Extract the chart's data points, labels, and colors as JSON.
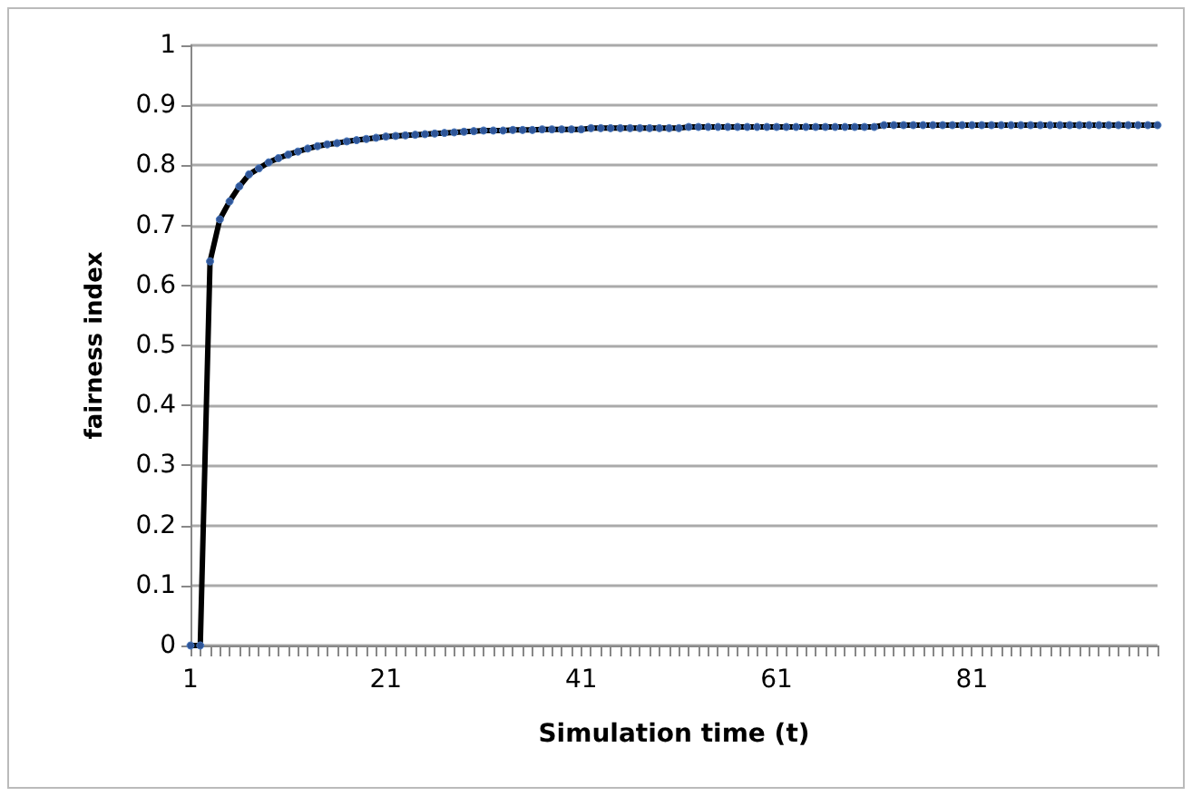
{
  "chart_data": {
    "type": "line",
    "xlabel": "Simulation time (t)",
    "ylabel": "fairness index",
    "categories": [
      "1",
      null,
      null,
      null,
      null,
      null,
      null,
      null,
      null,
      null,
      null,
      null,
      null,
      null,
      null,
      null,
      null,
      null,
      null,
      null,
      "21",
      null,
      null,
      null,
      null,
      null,
      null,
      null,
      null,
      null,
      null,
      null,
      null,
      null,
      null,
      null,
      null,
      null,
      null,
      null,
      "41",
      null,
      null,
      null,
      null,
      null,
      null,
      null,
      null,
      null,
      null,
      null,
      null,
      null,
      null,
      null,
      null,
      null,
      null,
      null,
      "61",
      null,
      null,
      null,
      null,
      null,
      null,
      null,
      null,
      null,
      null,
      null,
      null,
      null,
      null,
      null,
      null,
      null,
      null,
      null,
      "81",
      null,
      null,
      null,
      null,
      null,
      null,
      null,
      null,
      null,
      null,
      null,
      null,
      null,
      null,
      null,
      null,
      null,
      null,
      null
    ],
    "series": [
      {
        "color": "#000000",
        "values": [
          0,
          0,
          0.64,
          0.71,
          0.74,
          0.765,
          0.785,
          0.795,
          0.805,
          0.812,
          0.818,
          0.823,
          0.828,
          0.832,
          0.835,
          0.837,
          0.84,
          0.842,
          0.844,
          0.846,
          0.848,
          0.849,
          0.85,
          0.851,
          0.852,
          0.853,
          0.854,
          0.855,
          0.856,
          0.857,
          0.858,
          0.858,
          0.858,
          0.859,
          0.859,
          0.859,
          0.86,
          0.86,
          0.86,
          0.86,
          0.86,
          0.862,
          0.862,
          0.862,
          0.862,
          0.862,
          0.862,
          0.862,
          0.862,
          0.862,
          0.862,
          0.864,
          0.864,
          0.864,
          0.864,
          0.864,
          0.864,
          0.864,
          0.864,
          0.864,
          0.864,
          0.864,
          0.864,
          0.864,
          0.864,
          0.864,
          0.864,
          0.864,
          0.864,
          0.864,
          0.864,
          0.867,
          0.867,
          0.867,
          0.867,
          0.867,
          0.867,
          0.867,
          0.867,
          0.867,
          0.867,
          0.867,
          0.867,
          0.867,
          0.867,
          0.867,
          0.867,
          0.867,
          0.867,
          0.867,
          0.867,
          0.867,
          0.867,
          0.867,
          0.867,
          0.867,
          0.867,
          0.867,
          0.867,
          0.867
        ]
      }
    ],
    "ylim": [
      0,
      1
    ],
    "yticks": [
      0,
      0.1,
      0.2,
      0.3,
      0.4,
      0.5,
      0.6,
      0.7,
      0.8,
      0.9,
      1
    ],
    "grid": "y",
    "marker": "circle",
    "line_style": "solid"
  }
}
